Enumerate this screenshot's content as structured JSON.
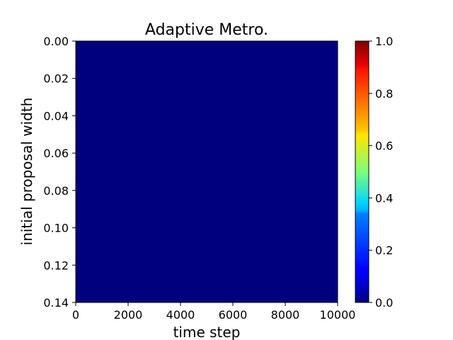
{
  "chart_data": {
    "type": "heatmap",
    "title": "Adaptive Metro.",
    "xlabel": "time step",
    "ylabel": "initial proposal width",
    "xlim": [
      0,
      10000
    ],
    "ylim": [
      0.14,
      0.0
    ],
    "y_inverted": true,
    "x_ticks": [
      "0",
      "2000",
      "4000",
      "6000",
      "8000",
      "10000"
    ],
    "x_tick_values": [
      0,
      2000,
      4000,
      6000,
      8000,
      10000
    ],
    "y_ticks": [
      "0.00",
      "0.02",
      "0.04",
      "0.06",
      "0.08",
      "0.10",
      "0.12",
      "0.14"
    ],
    "y_tick_values": [
      0.0,
      0.02,
      0.04,
      0.06,
      0.08,
      0.1,
      0.12,
      0.14
    ],
    "values_uniform": 0.0,
    "colormap": "jet",
    "colorbar": {
      "range": [
        0.0,
        1.0
      ],
      "ticks": [
        "0.0",
        "0.2",
        "0.4",
        "0.6",
        "0.8",
        "1.0"
      ],
      "tick_values": [
        0.0,
        0.2,
        0.4,
        0.6,
        0.8,
        1.0
      ]
    },
    "grid": false
  },
  "colors": {
    "jet_low": "#00007f",
    "jet_high": "#7f0000"
  }
}
